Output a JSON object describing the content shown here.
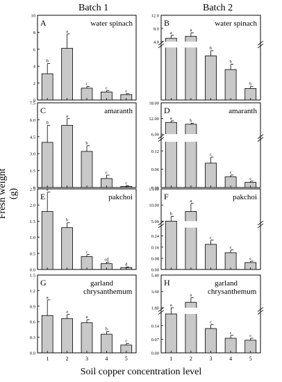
{
  "headers": {
    "batch1": "Batch 1",
    "batch2": "Batch 2"
  },
  "ylabel": "Fresh weight (g)",
  "xlabel": "Soil copper concentration level",
  "chart_data": [
    {
      "type": "bar",
      "letter": "A",
      "title": "water spinach",
      "categories": [
        "1",
        "2",
        "3",
        "4",
        "5"
      ],
      "values": [
        3.1,
        6.1,
        1.4,
        0.95,
        0.65
      ],
      "errors": [
        1.2,
        1.7,
        0.2,
        0.15,
        0.1
      ],
      "sig": [
        "b",
        "a",
        "c",
        "c",
        "c"
      ],
      "ylim": [
        0,
        10
      ],
      "yticks": [
        "0",
        "2",
        "4",
        "6",
        "8",
        "10"
      ],
      "xtick_labels": false
    },
    {
      "type": "bar",
      "letter": "B",
      "title": "water spinach",
      "categories": [
        "1",
        "2",
        "3",
        "4",
        "5"
      ],
      "values": [
        5.0,
        5.6,
        0.42,
        0.29,
        0.11
      ],
      "errors": [
        0.9,
        1.1,
        0.05,
        0.05,
        0.02
      ],
      "sig": [
        "a",
        "a",
        "b",
        "b",
        "b"
      ],
      "ylim": [
        0,
        12
      ],
      "yticks": [
        "4.0",
        "8.0",
        "12.0"
      ],
      "break": true,
      "xtick_labels": false
    },
    {
      "type": "bar",
      "letter": "C",
      "title": "amaranth",
      "categories": [
        "1",
        "2",
        "3",
        "4",
        "5"
      ],
      "values": [
        4.0,
        5.5,
        3.2,
        0.8,
        0.1
      ],
      "errors": [
        1.5,
        0.6,
        0.5,
        0.3,
        0.05
      ],
      "sig": [
        "b",
        "a",
        "b",
        "c",
        "c"
      ],
      "ylim": [
        0,
        7.5
      ],
      "yticks": [
        "0",
        "1.5",
        "3.0",
        "4.5",
        "6.0",
        "7.5"
      ],
      "xtick_labels": false
    },
    {
      "type": "bar",
      "letter": "D",
      "title": "amaranth",
      "categories": [
        "1",
        "2",
        "3",
        "4",
        "5"
      ],
      "values": [
        10.5,
        9.8,
        0.08,
        0.035,
        0.017
      ],
      "errors": [
        0.6,
        0.4,
        0.02,
        0.006,
        0.004
      ],
      "sig": [
        "a",
        "b",
        "c",
        "c",
        "c"
      ],
      "ylim": [
        0,
        18
      ],
      "yticks": [
        "0.00",
        "0.06",
        "0.12",
        "6.00",
        "12.00",
        "18.00"
      ],
      "break": true,
      "xtick_labels": false
    },
    {
      "type": "bar",
      "letter": "E",
      "title": "pakchoi",
      "categories": [
        "1",
        "2",
        "3",
        "4",
        "5"
      ],
      "values": [
        1.8,
        1.3,
        0.4,
        0.18,
        0.06
      ],
      "errors": [
        0.6,
        0.15,
        0.06,
        0.05,
        0.02
      ],
      "sig": [
        "a",
        "b",
        "c",
        "cd",
        "d"
      ],
      "ylim": [
        0,
        2.5
      ],
      "yticks": [
        "0.0",
        "0.5",
        "1.0",
        "1.5",
        "2.0",
        "2.5"
      ],
      "xtick_labels": false
    },
    {
      "type": "bar",
      "letter": "F",
      "title": "pakchoi",
      "categories": [
        "1",
        "2",
        "3",
        "4",
        "5"
      ],
      "values": [
        5.0,
        8.0,
        0.18,
        0.12,
        0.05
      ],
      "errors": [
        1.5,
        2.5,
        0.03,
        0.02,
        0.01
      ],
      "sig": [
        "b",
        "a",
        "c",
        "c",
        "c"
      ],
      "ylim": [
        0,
        15
      ],
      "yticks": [
        "0.00",
        "0.08",
        "0.16",
        "0.24",
        "5.00",
        "10.00",
        "15.00"
      ],
      "break": true,
      "xtick_labels": false
    },
    {
      "type": "bar",
      "letter": "G",
      "title": "garland chrysanthemum",
      "categories": [
        "1",
        "2",
        "3",
        "4",
        "5"
      ],
      "values": [
        0.72,
        0.66,
        0.58,
        0.36,
        0.15
      ],
      "errors": [
        0.3,
        0.08,
        0.06,
        0.05,
        0.03
      ],
      "sig": [
        "a",
        "a",
        "a",
        "b",
        "c"
      ],
      "ylim": [
        0,
        1.5
      ],
      "yticks": [
        "0.0",
        "0.3",
        "0.6",
        "0.9",
        "1.2",
        "1.5"
      ],
      "xtick_labels": true
    },
    {
      "type": "bar",
      "letter": "H",
      "title": "garland chrysanthemum",
      "categories": [
        "1",
        "2",
        "3",
        "4",
        "5"
      ],
      "values": [
        1.5,
        2.4,
        0.125,
        0.075,
        0.065
      ],
      "errors": [
        0.3,
        0.5,
        0.02,
        0.015,
        0.01
      ],
      "sig": [
        "a",
        "a",
        "c",
        "c",
        "c"
      ],
      "ylim": [
        0,
        5.4
      ],
      "yticks": [
        "0.00",
        "0.07",
        "0.14",
        "1.80",
        "3.60",
        "5.40"
      ],
      "break": true,
      "xtick_labels": true
    }
  ]
}
